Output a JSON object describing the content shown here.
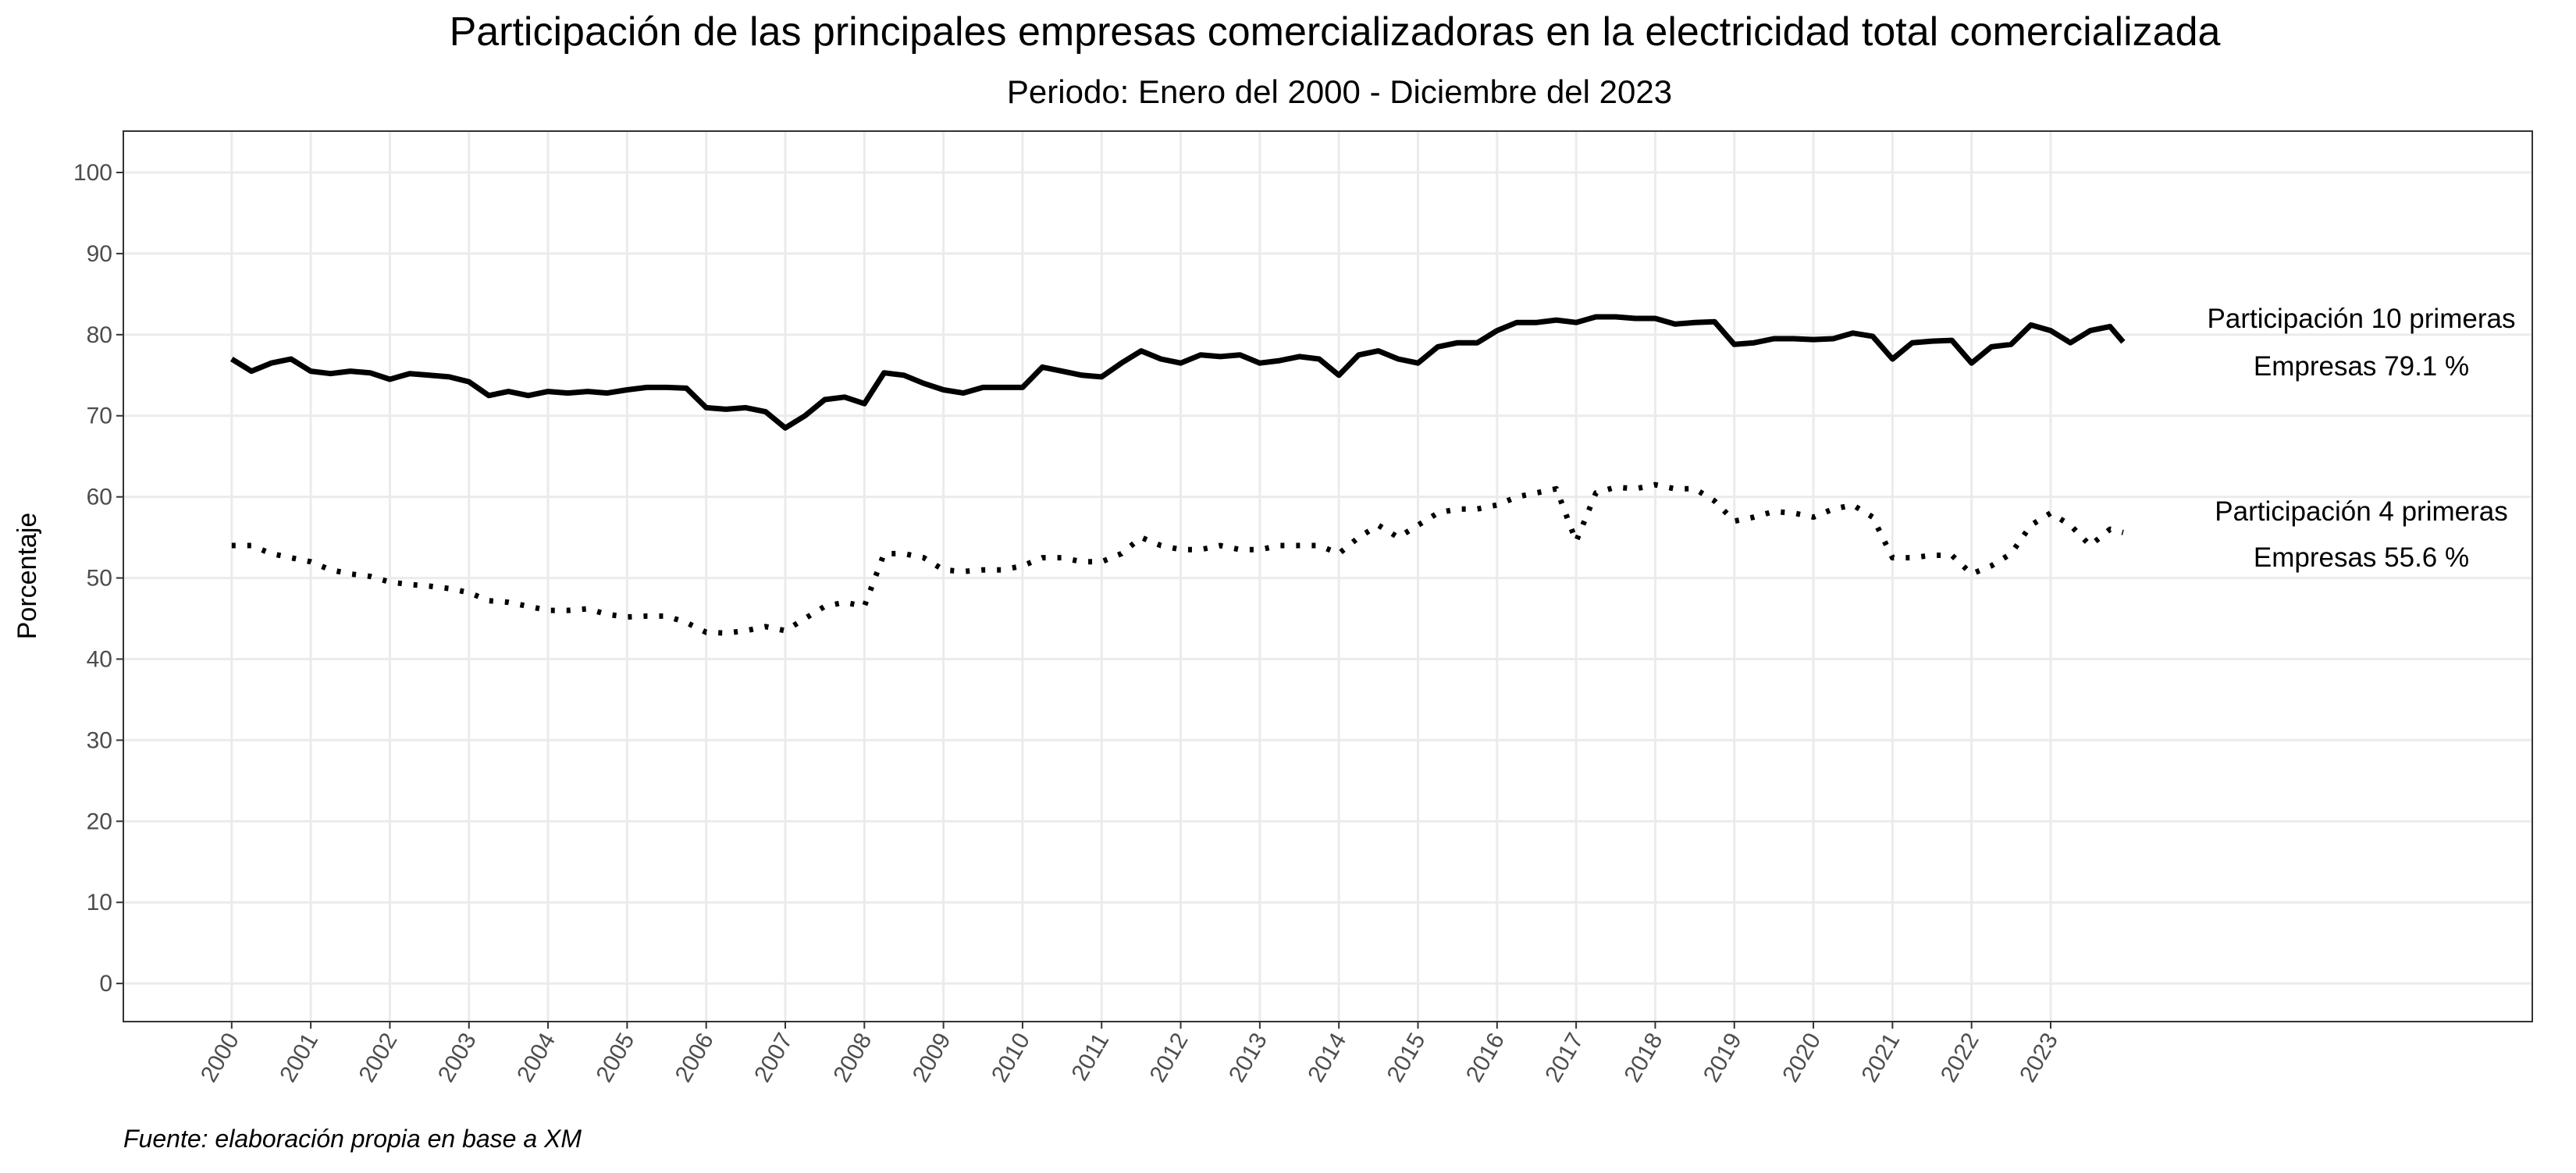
{
  "chart_data": {
    "type": "line",
    "title": "Participación de las principales empresas comercializadoras en la electricidad total comercializada",
    "subtitle": "Periodo: Enero del 2000 - Diciembre del 2023",
    "ylabel": "Porcentaje",
    "caption": "Fuente: elaboración propia en base a XM",
    "x": [
      2000,
      2000.25,
      2000.5,
      2000.75,
      2001,
      2001.25,
      2001.5,
      2001.75,
      2002,
      2002.25,
      2002.5,
      2002.75,
      2003,
      2003.25,
      2003.5,
      2003.75,
      2004,
      2004.25,
      2004.5,
      2004.75,
      2005,
      2005.25,
      2005.5,
      2005.75,
      2006,
      2006.25,
      2006.5,
      2006.75,
      2007,
      2007.25,
      2007.5,
      2007.75,
      2008,
      2008.25,
      2008.5,
      2008.75,
      2009,
      2009.25,
      2009.5,
      2009.75,
      2010,
      2010.25,
      2010.5,
      2010.75,
      2011,
      2011.25,
      2011.5,
      2011.75,
      2012,
      2012.25,
      2012.5,
      2012.75,
      2013,
      2013.25,
      2013.5,
      2013.75,
      2014,
      2014.25,
      2014.5,
      2014.75,
      2015,
      2015.25,
      2015.5,
      2015.75,
      2016,
      2016.25,
      2016.5,
      2016.75,
      2017,
      2017.25,
      2017.5,
      2017.75,
      2018,
      2018.25,
      2018.5,
      2018.75,
      2019,
      2019.25,
      2019.5,
      2019.75,
      2020,
      2020.25,
      2020.5,
      2020.75,
      2021,
      2021.25,
      2021.5,
      2021.75,
      2022,
      2022.25,
      2022.5,
      2022.75,
      2023,
      2023.25,
      2023.5,
      2023.75,
      2023.917
    ],
    "series": [
      {
        "color": "#000000",
        "dash": "solid",
        "label": [
          "Participación 10 primeras",
          "Empresas 79.1 %"
        ],
        "values": [
          77,
          75.5,
          76.5,
          77,
          75.5,
          75.2,
          75.5,
          75.3,
          74.5,
          75.2,
          75,
          74.8,
          74.2,
          72.5,
          73,
          72.5,
          73,
          72.8,
          73,
          72.8,
          73.2,
          73.5,
          73.5,
          73.4,
          71,
          70.8,
          71,
          70.5,
          68.5,
          70,
          72,
          72.3,
          71.5,
          75.3,
          75,
          74,
          73.2,
          72.8,
          73.5,
          73.5,
          73.5,
          76,
          75.5,
          75,
          74.8,
          76.5,
          78,
          77,
          76.5,
          77.5,
          77.3,
          77.5,
          76.5,
          76.8,
          77.3,
          77,
          75,
          77.5,
          78,
          77,
          76.5,
          78.5,
          79,
          79,
          80.5,
          81.5,
          81.5,
          81.8,
          81.5,
          82.2,
          82.2,
          82,
          82,
          81.3,
          81.5,
          81.6,
          78.8,
          79,
          79.5,
          79.5,
          79.4,
          79.5,
          80.2,
          79.8,
          77,
          79,
          79.2,
          79.3,
          76.5,
          78.5,
          78.8,
          81.2,
          80.5,
          79,
          80.5,
          81,
          79.1
        ]
      },
      {
        "color": "#000000",
        "dash": "dotted",
        "label": [
          "Participación 4 primeras",
          "Empresas 55.6 %"
        ],
        "values": [
          54,
          54,
          53,
          52.5,
          52,
          51,
          50.5,
          50.2,
          49.5,
          49.2,
          49,
          48.7,
          48.2,
          47.2,
          47,
          46.5,
          46,
          46,
          46.2,
          45.5,
          45.2,
          45.3,
          45.3,
          44.5,
          43.3,
          43.2,
          43.5,
          44,
          43.5,
          45,
          46.5,
          47,
          46.5,
          53,
          53,
          52.5,
          51,
          50.8,
          51,
          51,
          51.5,
          52.5,
          52.5,
          52,
          52,
          53,
          55,
          54,
          53.5,
          53.5,
          54,
          53.5,
          53.5,
          54,
          54,
          54,
          53,
          55,
          56.5,
          55,
          56.5,
          58,
          58.5,
          58.5,
          59,
          60,
          60.5,
          61,
          54.5,
          60.5,
          61.2,
          61,
          61.5,
          61,
          61,
          59.5,
          57,
          57.5,
          58.2,
          58,
          57.5,
          58.5,
          59,
          57.5,
          52.5,
          52.5,
          52.8,
          52.8,
          50.5,
          51.5,
          53,
          56.5,
          58,
          56.5,
          54,
          56,
          55.6
        ]
      }
    ],
    "xlim": [
      1998.63,
      2029.09
    ],
    "xticks": [
      2000,
      2001,
      2002,
      2003,
      2004,
      2005,
      2006,
      2007,
      2008,
      2009,
      2010,
      2011,
      2012,
      2013,
      2014,
      2015,
      2016,
      2017,
      2018,
      2019,
      2020,
      2021,
      2022,
      2023
    ],
    "ylim": [
      -4.7,
      105.1
    ],
    "yticks": [
      0,
      10,
      20,
      30,
      40,
      50,
      60,
      70,
      80,
      90,
      100
    ],
    "grid": true
  }
}
